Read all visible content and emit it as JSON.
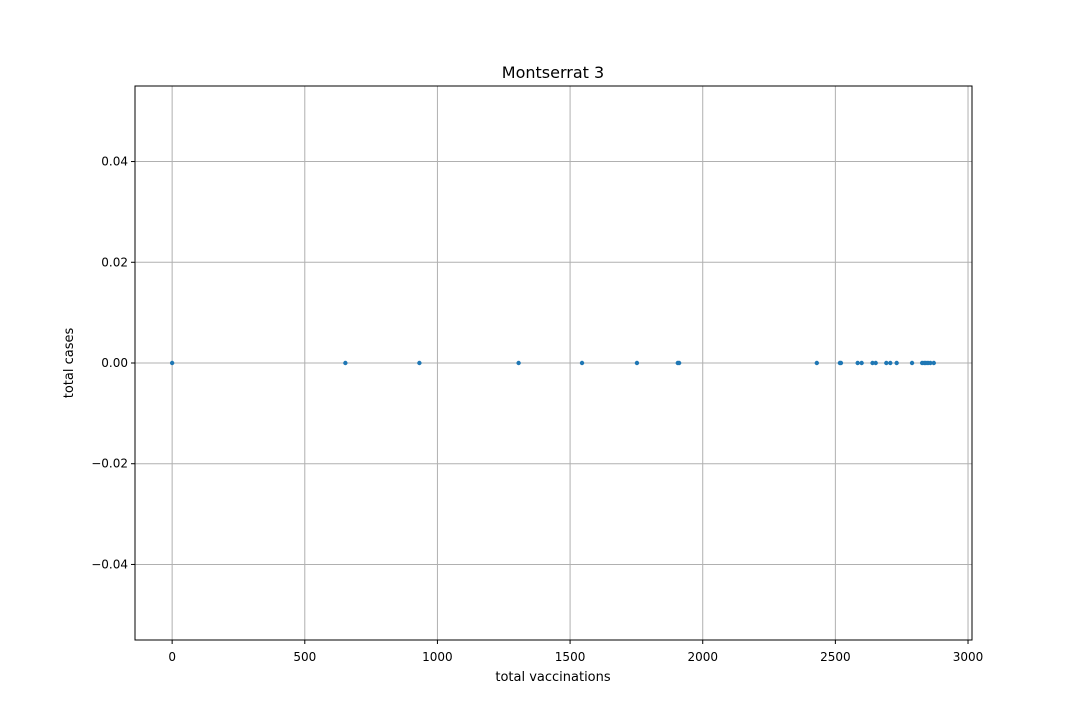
{
  "chart_data": {
    "type": "scatter",
    "title": "Montserrat 3",
    "xlabel": "total vaccinations",
    "ylabel": "total cases",
    "xlim": [
      -140,
      3015
    ],
    "ylim": [
      -0.055,
      0.055
    ],
    "xticks": [
      0,
      500,
      1000,
      1500,
      2000,
      2500,
      3000
    ],
    "xtick_labels": [
      "0",
      "500",
      "1000",
      "1500",
      "2000",
      "2500",
      "3000"
    ],
    "yticks": [
      -0.04,
      -0.02,
      0.0,
      0.02,
      0.04
    ],
    "ytick_labels": [
      "−0.04",
      "−0.02",
      "0.00",
      "0.02",
      "0.04"
    ],
    "grid": true,
    "point_color": "#1f77b4",
    "series": [
      {
        "x": [
          0,
          653,
          932,
          1306,
          1545,
          1752,
          1906,
          1911,
          2430,
          2517,
          2521,
          2584,
          2599,
          2640,
          2652,
          2692,
          2707,
          2731,
          2789,
          2827,
          2835,
          2841,
          2849,
          2858,
          2871
        ],
        "y": [
          0,
          0,
          0,
          0,
          0,
          0,
          0,
          0,
          0,
          0,
          0,
          0,
          0,
          0,
          0,
          0,
          0,
          0,
          0,
          0,
          0,
          0,
          0,
          0,
          0
        ]
      }
    ]
  }
}
